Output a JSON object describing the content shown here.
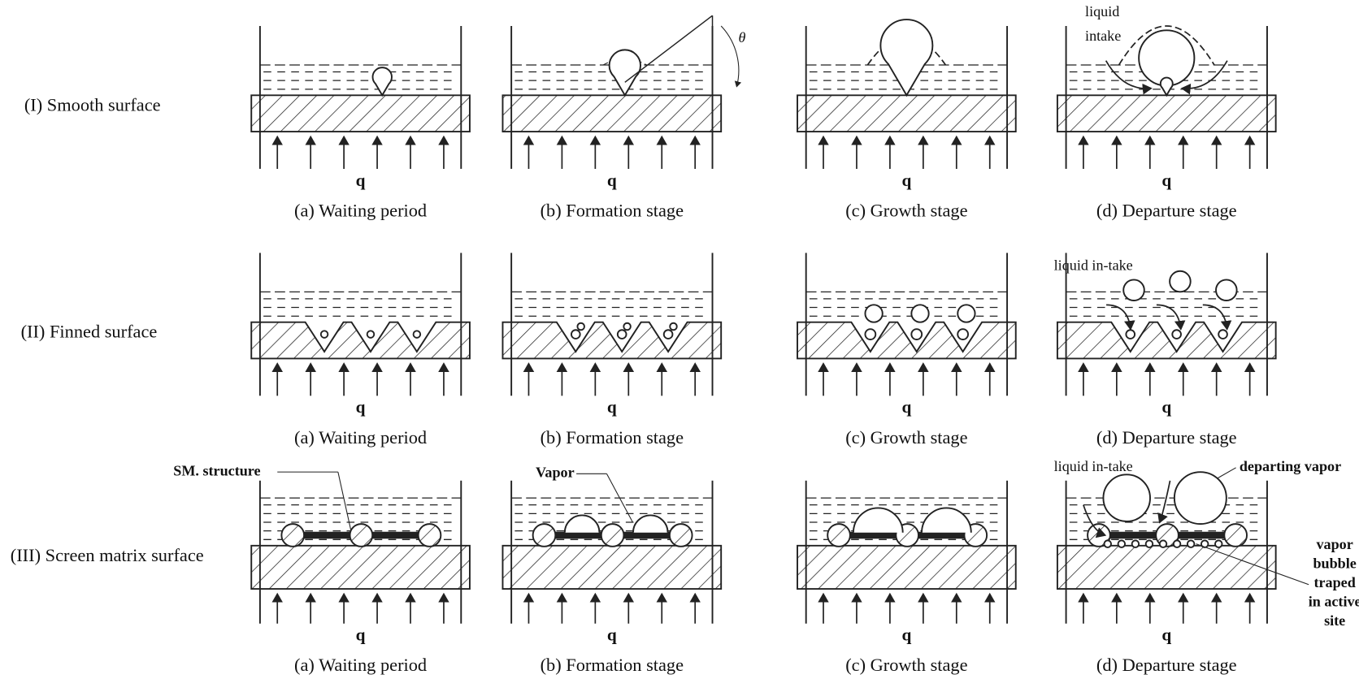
{
  "rows": [
    {
      "label": "(I) Smooth surface",
      "panels": [
        {
          "q": "q",
          "caption": "(a) Waiting period"
        },
        {
          "q": "q",
          "caption": "(b) Formation stage"
        },
        {
          "q": "q",
          "caption": "(c) Growth stage"
        },
        {
          "q": "q",
          "caption": "(d) Departure stage"
        }
      ]
    },
    {
      "label": "(II) Finned surface",
      "panels": [
        {
          "q": "q",
          "caption": "(a) Waiting period"
        },
        {
          "q": "q",
          "caption": "(b) Formation stage"
        },
        {
          "q": "q",
          "caption": "(c) Growth stage"
        },
        {
          "q": "q",
          "caption": "(d) Departure stage"
        }
      ]
    },
    {
      "label": "(III) Screen matrix surface",
      "panels": [
        {
          "q": "q",
          "caption": "(a) Waiting period"
        },
        {
          "q": "q",
          "caption": "(b) Formation stage"
        },
        {
          "q": "q",
          "caption": "(c) Growth stage"
        },
        {
          "q": "q",
          "caption": "(d) Departure stage"
        }
      ]
    }
  ],
  "annotations": {
    "theta": "θ",
    "liquid_intake": [
      "liquid",
      "intake"
    ],
    "finned_intake": "liquid in-take",
    "sm_structure": "SM. structure",
    "vapor": "Vapor",
    "screen_intake": "liquid in-take",
    "departing_vapor": "departing vapor",
    "trapped": [
      "vapor",
      "bubble",
      "traped",
      "in active",
      "site"
    ]
  }
}
